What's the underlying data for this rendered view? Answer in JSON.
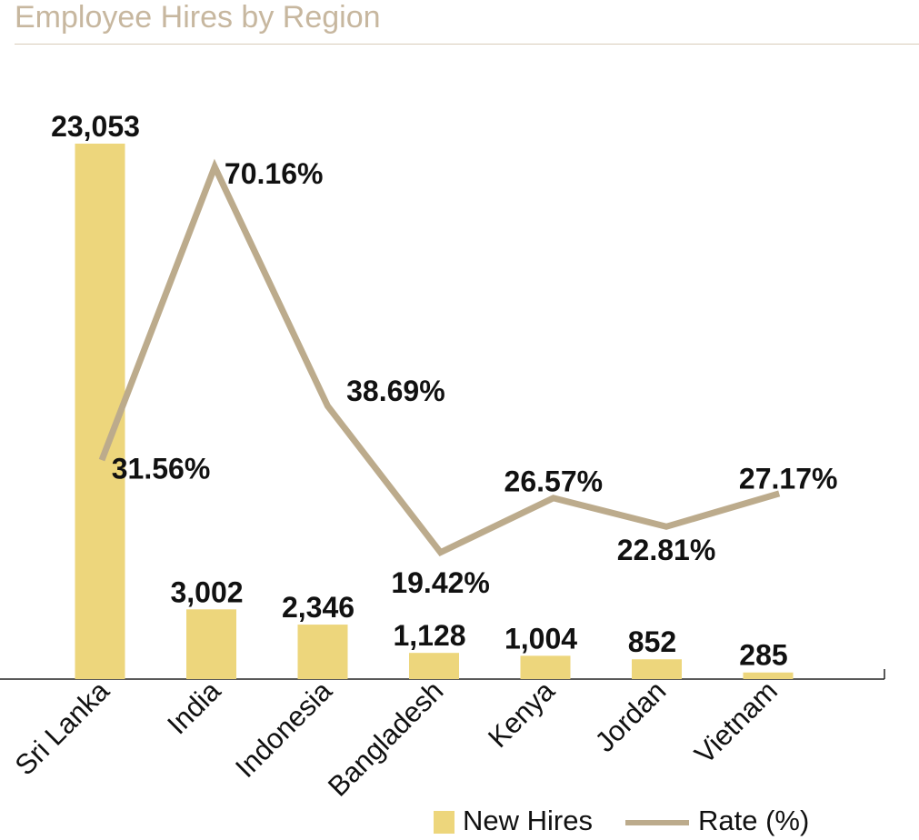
{
  "chart_data": {
    "type": "bar",
    "title": "Employee Hires by Region",
    "categories": [
      "Sri Lanka",
      "India",
      "Indonesia",
      "Bangladesh",
      "Kenya",
      "Jordan",
      "Vietnam"
    ],
    "series": [
      {
        "name": "New Hires",
        "type": "bar",
        "values": [
          23053,
          3002,
          2346,
          1128,
          1004,
          852,
          285
        ],
        "labels": [
          "23,053",
          "3,002",
          "2,346",
          "1,128",
          "1,004",
          "852",
          "285"
        ]
      },
      {
        "name": "Rate (%)",
        "type": "line",
        "values": [
          31.56,
          70.16,
          38.69,
          19.42,
          26.57,
          22.81,
          27.17
        ],
        "labels": [
          "31.56%",
          "70.16%",
          "38.69%",
          "19.42%",
          "26.57%",
          "22.81%",
          "27.17%"
        ]
      }
    ],
    "legend": {
      "position": "bottom-right",
      "items": [
        "New Hires",
        "Rate (%)"
      ]
    },
    "grid": false,
    "colors": {
      "bar": "#edd67c",
      "line": "#bcab8c",
      "title": "#c7b79f",
      "text": "#111111"
    }
  }
}
